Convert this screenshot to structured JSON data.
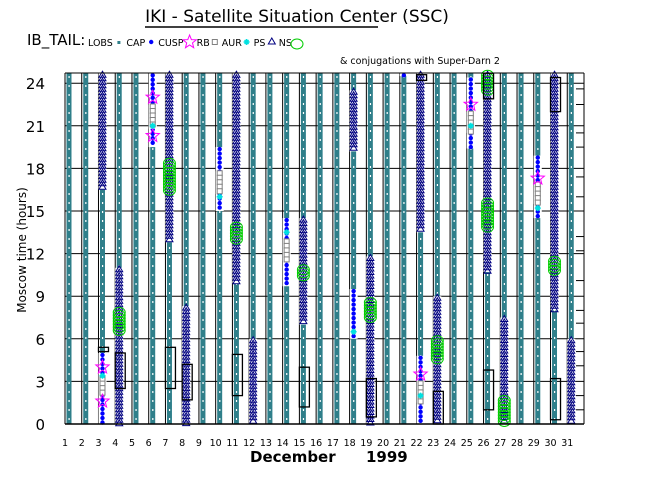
{
  "header": {
    "title": "IKI - Satellite Situation Center (SSC)",
    "mission": "IB_TAIL:",
    "note": "& conjugations with Super-Darn 2"
  },
  "legend": [
    {
      "label": "LOBS",
      "symbol": "square-filled",
      "color": "#2f7f8a"
    },
    {
      "label": "CAP",
      "symbol": "dot",
      "color": "#0000ff"
    },
    {
      "label": "CUSP",
      "symbol": "star",
      "color": "#ff00ff"
    },
    {
      "label": "RB",
      "symbol": "square-open",
      "color": "#808080"
    },
    {
      "label": "AUR",
      "symbol": "asterisk",
      "color": "#00e0e0"
    },
    {
      "label": "PS",
      "symbol": "triangle",
      "color": "#000080"
    },
    {
      "label": "NS",
      "symbol": "circle",
      "color": "#00cc00"
    }
  ],
  "chart_data": {
    "type": "scatter",
    "title": "IKI - Satellite Situation Center (SSC)",
    "xlabel": "December 1999",
    "xlabel_month": "December",
    "xlabel_year": "1999",
    "ylabel": "Moscow time (hours)",
    "x_ticks": [
      "1",
      "2",
      "3",
      "4",
      "5",
      "6",
      "7",
      "8",
      "9",
      "10",
      "11",
      "12",
      "13",
      "14",
      "15",
      "16",
      "17",
      "18",
      "19",
      "20",
      "21",
      "22",
      "23",
      "24",
      "25",
      "26",
      "27",
      "28",
      "29",
      "30",
      "31"
    ],
    "y_ticks": [
      "0",
      "3",
      "6",
      "9",
      "12",
      "15",
      "18",
      "21",
      "24"
    ],
    "ylim": [
      0,
      24.7
    ],
    "default_region": "LOBS",
    "segments": [
      {
        "day": 3,
        "region": "PS",
        "from": 16.5,
        "to": 24.7
      },
      {
        "day": 3,
        "region": "CAP",
        "from": 0,
        "to": 5
      },
      {
        "day": 3,
        "region": "RB",
        "from": 2,
        "to": 3.3
      },
      {
        "day": 4,
        "region": "PS",
        "from": 0,
        "to": 11
      },
      {
        "day": 4,
        "region": "NS",
        "from": 6.5,
        "to": 8
      },
      {
        "day": 6,
        "region": "CAP",
        "from": 19.5,
        "to": 24.7
      },
      {
        "day": 6,
        "region": "RB",
        "from": 20.8,
        "to": 22.5
      },
      {
        "day": 7,
        "region": "PS",
        "from": 12.8,
        "to": 24.7
      },
      {
        "day": 7,
        "region": "NS",
        "from": 16.4,
        "to": 18.5
      },
      {
        "day": 8,
        "region": "PS",
        "from": 0,
        "to": 8.3
      },
      {
        "day": 10,
        "region": "CAP",
        "from": 15,
        "to": 19.5
      },
      {
        "day": 10,
        "region": "RB",
        "from": 16.2,
        "to": 17.8
      },
      {
        "day": 11,
        "region": "PS",
        "from": 9.9,
        "to": 24.7
      },
      {
        "day": 11,
        "region": "NS",
        "from": 13,
        "to": 14
      },
      {
        "day": 12,
        "region": "PS",
        "from": 0,
        "to": 6
      },
      {
        "day": 14,
        "region": "CAP",
        "from": 9.7,
        "to": 14.5
      },
      {
        "day": 14,
        "region": "RB",
        "from": 11.5,
        "to": 13
      },
      {
        "day": 15,
        "region": "PS",
        "from": 7,
        "to": 14.5
      },
      {
        "day": 15,
        "region": "NS",
        "from": 10.4,
        "to": 11
      },
      {
        "day": 18,
        "region": "PS",
        "from": 19.2,
        "to": 23.5
      },
      {
        "day": 18,
        "region": "CAP",
        "from": 6,
        "to": 9.5
      },
      {
        "day": 19,
        "region": "PS",
        "from": 0,
        "to": 11.8
      },
      {
        "day": 19,
        "region": "NS",
        "from": 7.5,
        "to": 8.7
      },
      {
        "day": 21,
        "region": "CAP",
        "from": 24.5,
        "to": 24.7
      },
      {
        "day": 22,
        "region": "PS",
        "from": 13.5,
        "to": 24.7
      },
      {
        "day": 22,
        "region": "CAP",
        "from": 0,
        "to": 4.8
      },
      {
        "day": 22,
        "region": "RB",
        "from": 1.5,
        "to": 3
      },
      {
        "day": 23,
        "region": "PS",
        "from": 0,
        "to": 9
      },
      {
        "day": 23,
        "region": "NS",
        "from": 4.5,
        "to": 6
      },
      {
        "day": 25,
        "region": "CAP",
        "from": 19.4,
        "to": 24.4
      },
      {
        "day": 25,
        "region": "RB",
        "from": 20.5,
        "to": 22
      },
      {
        "day": 26,
        "region": "PS",
        "from": 10.7,
        "to": 24.7
      },
      {
        "day": 26,
        "region": "NS",
        "from": 23.3,
        "to": 24.7
      },
      {
        "day": 26,
        "region": "NS",
        "from": 13.8,
        "to": 15.7
      },
      {
        "day": 27,
        "region": "PS",
        "from": 0,
        "to": 7.5
      },
      {
        "day": 27,
        "region": "NS",
        "from": 0,
        "to": 1.8
      },
      {
        "day": 29,
        "region": "CAP",
        "from": 14.5,
        "to": 18.9
      },
      {
        "day": 29,
        "region": "RB",
        "from": 15.5,
        "to": 17
      },
      {
        "day": 30,
        "region": "PS",
        "from": 8,
        "to": 24.7
      },
      {
        "day": 30,
        "region": "NS",
        "from": 10.8,
        "to": 11.6
      },
      {
        "day": 31,
        "region": "PS",
        "from": 0,
        "to": 6
      }
    ],
    "points": [
      {
        "day": 3,
        "region": "CUSP",
        "hour": 4
      },
      {
        "day": 3,
        "region": "CUSP",
        "hour": 1.6
      },
      {
        "day": 3,
        "region": "AUR",
        "hour": 3.4
      },
      {
        "day": 6,
        "region": "CUSP",
        "hour": 23
      },
      {
        "day": 6,
        "region": "CUSP",
        "hour": 20.3
      },
      {
        "day": 6,
        "region": "AUR",
        "hour": 21
      },
      {
        "day": 10,
        "region": "AUR",
        "hour": 16
      },
      {
        "day": 14,
        "region": "AUR",
        "hour": 13.5
      },
      {
        "day": 18,
        "region": "AUR",
        "hour": 6.5
      },
      {
        "day": 22,
        "region": "CUSP",
        "hour": 3.5
      },
      {
        "day": 22,
        "region": "AUR",
        "hour": 2
      },
      {
        "day": 25,
        "region": "CUSP",
        "hour": 22.5
      },
      {
        "day": 25,
        "region": "AUR",
        "hour": 21
      },
      {
        "day": 29,
        "region": "CUSP",
        "hour": 17.3
      },
      {
        "day": 29,
        "region": "AUR",
        "hour": 15.2
      }
    ],
    "superdarn_conjugations": [
      {
        "day": 3,
        "from": 5.1,
        "to": 5.4
      },
      {
        "day": 4,
        "from": 2.5,
        "to": 5
      },
      {
        "day": 7,
        "from": 2.5,
        "to": 5.4
      },
      {
        "day": 8,
        "from": 1.7,
        "to": 4.2
      },
      {
        "day": 11,
        "from": 2,
        "to": 4.9
      },
      {
        "day": 15,
        "from": 1.2,
        "to": 4
      },
      {
        "day": 19,
        "from": 0.5,
        "to": 3.2
      },
      {
        "day": 22,
        "from": 24.2,
        "to": 24.6
      },
      {
        "day": 23,
        "from": 0,
        "to": 2.3
      },
      {
        "day": 26,
        "from": 22.9,
        "to": 24.7
      },
      {
        "day": 26,
        "from": 1,
        "to": 3.8
      },
      {
        "day": 30,
        "from": 22,
        "to": 24.4
      },
      {
        "day": 30,
        "from": 0.3,
        "to": 3.2
      }
    ],
    "right_axis_ticks": [
      23.6,
      22.5,
      20.5,
      19.5,
      17.4,
      16,
      13.2,
      12.2,
      10.1,
      8,
      7.1,
      5.1,
      4.1,
      2,
      1
    ]
  }
}
